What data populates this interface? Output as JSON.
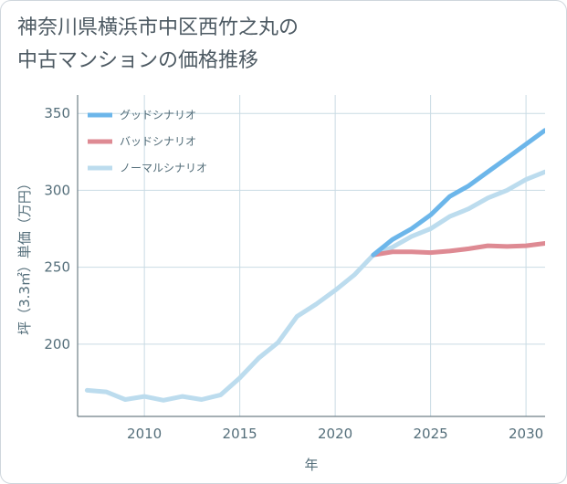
{
  "page": {
    "title": "神奈川県横浜市中区西竹之丸の\n中古マンションの価格推移"
  },
  "colors": {
    "good": "#6cb6ea",
    "bad": "#de8a93",
    "normal": "#bcdcee",
    "grid": "#c9dbe4",
    "text": "#546e7a"
  },
  "chart_data": {
    "type": "line",
    "title": "神奈川県横浜市中区西竹之丸の\n中古マンションの価格推移",
    "xlabel": "年",
    "ylabel": "坪（3.3㎡）単価（万円）",
    "xlim": [
      2006.5,
      2031
    ],
    "ylim": [
      153,
      362
    ],
    "xticks": [
      2010,
      2015,
      2020,
      2025,
      2030
    ],
    "yticks": [
      200,
      250,
      300,
      350
    ],
    "grid": true,
    "legend_position": "top-left",
    "series": [
      {
        "name": "グッドシナリオ",
        "color": "#6cb6ea",
        "x": [
          2022,
          2023,
          2024,
          2025,
          2026,
          2027,
          2028,
          2029,
          2030,
          2031
        ],
        "y": [
          258,
          268,
          275,
          284,
          296,
          303,
          312,
          321,
          330,
          339
        ]
      },
      {
        "name": "バッドシナリオ",
        "color": "#de8a93",
        "x": [
          2022,
          2023,
          2024,
          2025,
          2026,
          2027,
          2028,
          2029,
          2030,
          2031
        ],
        "y": [
          258,
          260,
          260,
          259.5,
          260.5,
          262,
          264,
          263.5,
          264,
          265.5
        ]
      },
      {
        "name": "ノーマルシナリオ",
        "color": "#bcdcee",
        "x": [
          2007,
          2008,
          2009,
          2010,
          2011,
          2012,
          2013,
          2014,
          2015,
          2016,
          2017,
          2018,
          2019,
          2020,
          2021,
          2022,
          2023,
          2024,
          2025,
          2026,
          2027,
          2028,
          2029,
          2030,
          2031
        ],
        "y": [
          170,
          169,
          164,
          166,
          163.5,
          166,
          164,
          167,
          178,
          191,
          201,
          218,
          226,
          235,
          245,
          258,
          263,
          270,
          275,
          283,
          288,
          295,
          300,
          307,
          312
        ]
      }
    ]
  }
}
